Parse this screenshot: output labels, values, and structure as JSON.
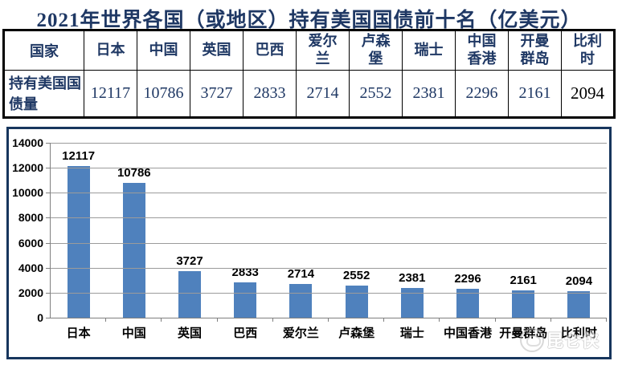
{
  "title": "2021年世界各国（或地区）持有美国国债前十名（亿美元）",
  "table": {
    "country_row_header": "国家",
    "value_row_header": "持有美国国债量",
    "countries": [
      "日本",
      "中国",
      "英国",
      "巴西",
      "爱尔兰",
      "卢森堡",
      "瑞士",
      "中国香港",
      "开曼群岛",
      "比利时"
    ],
    "values": [
      "12117",
      "10786",
      "3727",
      "2833",
      "2714",
      "2552",
      "2381",
      "2296",
      "2161",
      "2094"
    ]
  },
  "chart_data": {
    "type": "bar",
    "title": "",
    "categories": [
      "日本",
      "中国",
      "英国",
      "巴西",
      "爱尔兰",
      "卢森堡",
      "瑞士",
      "中国香港",
      "开曼群岛",
      "比利时"
    ],
    "values": [
      12117,
      10786,
      3727,
      2833,
      2714,
      2552,
      2381,
      2296,
      2161,
      2094
    ],
    "data_labels": [
      "12117",
      "10786",
      "3727",
      "2833",
      "2714",
      "2552",
      "2381",
      "2296",
      "2161",
      "2094"
    ],
    "xlabel": "",
    "ylabel": "",
    "ylim": [
      0,
      14000
    ],
    "yticks": [
      0,
      2000,
      4000,
      6000,
      8000,
      10000,
      12000,
      14000
    ],
    "grid": true,
    "legend": "none",
    "bar_color": "#4F81BD"
  },
  "colors": {
    "title_text": "#1F3864",
    "table_text": "#1F3864",
    "table_border": "#000000",
    "chart_border": "#17365D",
    "gridline": "#9b9b9b",
    "bar": "#4F81BD",
    "axis_text": "#000000"
  },
  "watermark": {
    "text": "昆仑侠"
  }
}
